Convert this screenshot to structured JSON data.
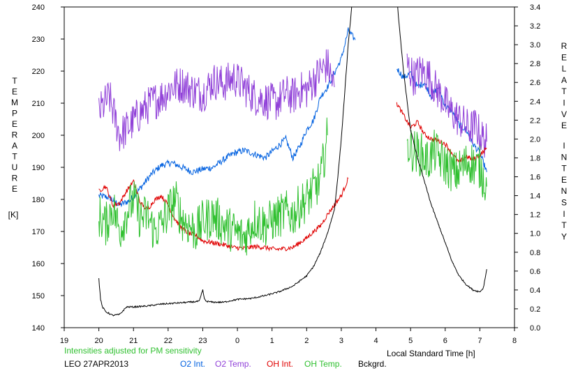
{
  "chart_data": {
    "type": "line",
    "xlabel": "Local Standard Time [h]",
    "left_axis": {
      "label_letters": [
        "T",
        "E",
        "M",
        "P",
        "E",
        "R",
        "A",
        "T",
        "U",
        "R",
        "E"
      ],
      "unit": "[K]",
      "ylim": [
        140,
        240
      ],
      "ticks": [
        140,
        150,
        160,
        170,
        180,
        190,
        200,
        210,
        220,
        230,
        240
      ]
    },
    "right_axis": {
      "label_word1": [
        "R",
        "E",
        "L",
        "A",
        "T",
        "I",
        "V",
        "E"
      ],
      "label_word2": [
        "I",
        "N",
        "T",
        "E",
        "N",
        "S",
        "I",
        "T",
        "Y"
      ],
      "ylim": [
        0.0,
        3.4
      ],
      "ticks": [
        "0.0",
        "0.2",
        "0.4",
        "0.6",
        "0.8",
        "1.0",
        "1.2",
        "1.4",
        "1.6",
        "1.8",
        "2.0",
        "2.2",
        "2.4",
        "2.6",
        "2.8",
        "3.0",
        "3.2",
        "3.4"
      ]
    },
    "x_axis": {
      "ticks": [
        "19",
        "20",
        "21",
        "22",
        "23",
        "0",
        "1",
        "2",
        "3",
        "4",
        "5",
        "6",
        "7",
        "8"
      ]
    },
    "note": "Intensities adjusted for PM sensitivity",
    "station": "LEO 27APR2013",
    "series": [
      {
        "name": "O2 Int.",
        "color": "#0060e0",
        "axis": "right",
        "x": [
          20.0,
          20.3,
          20.6,
          20.9,
          21.2,
          21.5,
          21.8,
          22.1,
          22.4,
          22.7,
          23.0,
          23.3,
          23.6,
          23.9,
          24.2,
          24.5,
          24.8,
          25.1,
          25.4,
          25.6,
          25.8,
          26.0,
          26.2,
          26.4,
          26.6,
          26.8,
          27.0,
          27.2,
          27.4,
          28.6,
          28.8,
          29.0,
          29.2,
          29.4,
          29.6,
          29.8,
          30.0,
          30.2,
          30.4,
          30.6,
          30.8,
          31.0,
          31.2
        ],
        "y": [
          1.4,
          1.38,
          1.3,
          1.35,
          1.48,
          1.62,
          1.72,
          1.75,
          1.7,
          1.65,
          1.68,
          1.7,
          1.78,
          1.85,
          1.88,
          1.84,
          1.8,
          1.9,
          2.0,
          1.8,
          1.92,
          2.1,
          2.2,
          2.45,
          2.55,
          2.7,
          2.85,
          3.15,
          3.05,
          2.75,
          2.65,
          2.7,
          2.55,
          2.6,
          2.45,
          2.55,
          2.35,
          2.3,
          2.15,
          2.1,
          1.95,
          1.85,
          1.65
        ],
        "noise": 0.035
      },
      {
        "name": "O2 Temp.",
        "color": "#9040d8",
        "axis": "left",
        "x": [
          20.0,
          20.3,
          20.6,
          20.9,
          21.2,
          21.5,
          21.8,
          22.1,
          22.4,
          22.7,
          23.0,
          23.3,
          23.6,
          23.9,
          24.2,
          24.5,
          24.8,
          25.1,
          25.4,
          25.6,
          25.8,
          26.0,
          26.2,
          26.4,
          26.6,
          26.8,
          28.9,
          29.1,
          29.3,
          29.5,
          29.7,
          29.9,
          30.1,
          30.3,
          30.5,
          30.7,
          30.9,
          31.0,
          31.2
        ],
        "y": [
          207,
          212,
          200,
          203,
          207,
          210,
          212,
          215,
          216,
          214,
          213,
          217,
          216,
          218,
          215,
          212,
          211,
          210,
          213,
          212,
          214,
          214,
          217,
          220,
          222,
          215,
          222,
          218,
          220,
          219,
          215,
          212,
          208,
          206,
          204,
          202,
          203,
          200,
          198
        ],
        "noise": 6
      },
      {
        "name": "OH Int.",
        "color": "#e00000",
        "axis": "right",
        "x": [
          20.0,
          20.2,
          20.4,
          20.6,
          20.8,
          21.0,
          21.2,
          21.4,
          21.6,
          21.8,
          22.0,
          22.2,
          22.4,
          22.6,
          22.8,
          23.0,
          23.3,
          23.6,
          23.9,
          24.2,
          24.5,
          24.8,
          25.1,
          25.4,
          25.6,
          25.8,
          26.0,
          26.2,
          26.4,
          26.6,
          26.8,
          27.0,
          27.2,
          28.6,
          28.8,
          29.0,
          29.2,
          29.4,
          29.6,
          29.8,
          30.0,
          30.2,
          30.4,
          30.6,
          30.8,
          31.0,
          31.2
        ],
        "y": [
          1.45,
          1.5,
          1.3,
          1.32,
          1.45,
          1.55,
          1.32,
          1.25,
          1.35,
          1.4,
          1.3,
          1.15,
          1.05,
          1.0,
          0.98,
          0.92,
          0.9,
          0.88,
          0.85,
          0.84,
          0.86,
          0.85,
          0.83,
          0.84,
          0.85,
          0.9,
          0.95,
          1.02,
          1.08,
          1.2,
          1.3,
          1.4,
          1.58,
          2.38,
          2.25,
          2.12,
          2.18,
          2.05,
          2.0,
          1.98,
          1.95,
          1.85,
          1.75,
          1.82,
          1.78,
          1.83,
          1.9
        ],
        "noise": 0.025
      },
      {
        "name": "OH Temp.",
        "color": "#30c030",
        "axis": "left",
        "x": [
          20.0,
          20.2,
          20.4,
          20.6,
          20.8,
          21.0,
          21.2,
          21.4,
          21.6,
          21.8,
          22.0,
          22.2,
          22.4,
          22.6,
          22.8,
          23.0,
          23.3,
          23.6,
          23.9,
          24.2,
          24.5,
          24.8,
          25.1,
          25.4,
          25.6,
          25.8,
          26.0,
          26.2,
          26.4,
          26.6,
          28.9,
          29.1,
          29.3,
          29.5,
          29.7,
          29.9,
          30.1,
          30.3,
          30.5,
          30.7,
          30.9,
          31.0,
          31.2
        ],
        "y": [
          175,
          172,
          178,
          170,
          176,
          180,
          174,
          175,
          170,
          172,
          176,
          180,
          174,
          172,
          170,
          173,
          175,
          172,
          170,
          168,
          174,
          172,
          174,
          176,
          175,
          178,
          180,
          183,
          186,
          200,
          197,
          195,
          194,
          192,
          195,
          192,
          190,
          188,
          190,
          192,
          190,
          190,
          184
        ],
        "noise": 7
      },
      {
        "name": "Bckgrd.",
        "color": "#000000",
        "axis": "right",
        "x": [
          20.0,
          20.05,
          20.1,
          20.2,
          20.4,
          20.6,
          20.8,
          21.0,
          21.4,
          21.8,
          22.2,
          22.6,
          22.9,
          23.0,
          23.05,
          23.1,
          23.3,
          23.6,
          24.0,
          24.4,
          24.8,
          25.2,
          25.6,
          26.0,
          26.2,
          26.4,
          26.6,
          26.8,
          26.9,
          27.0,
          27.1,
          27.2,
          27.3,
          27.36,
          28.58,
          28.65,
          28.8,
          29.0,
          29.2,
          29.4,
          29.6,
          29.8,
          30.0,
          30.2,
          30.4,
          30.6,
          30.8,
          31.0,
          31.1,
          31.2
        ],
        "y": [
          0.52,
          0.3,
          0.22,
          0.17,
          0.13,
          0.14,
          0.22,
          0.22,
          0.23,
          0.25,
          0.26,
          0.27,
          0.28,
          0.4,
          0.3,
          0.28,
          0.27,
          0.27,
          0.3,
          0.31,
          0.34,
          0.38,
          0.44,
          0.55,
          0.65,
          0.8,
          1.0,
          1.25,
          1.6,
          2.0,
          2.5,
          3.0,
          3.4,
          3.6,
          3.6,
          3.3,
          2.7,
          2.1,
          1.8,
          1.55,
          1.3,
          1.1,
          0.9,
          0.7,
          0.55,
          0.46,
          0.4,
          0.38,
          0.42,
          0.62
        ],
        "noise": 0.008
      }
    ]
  }
}
